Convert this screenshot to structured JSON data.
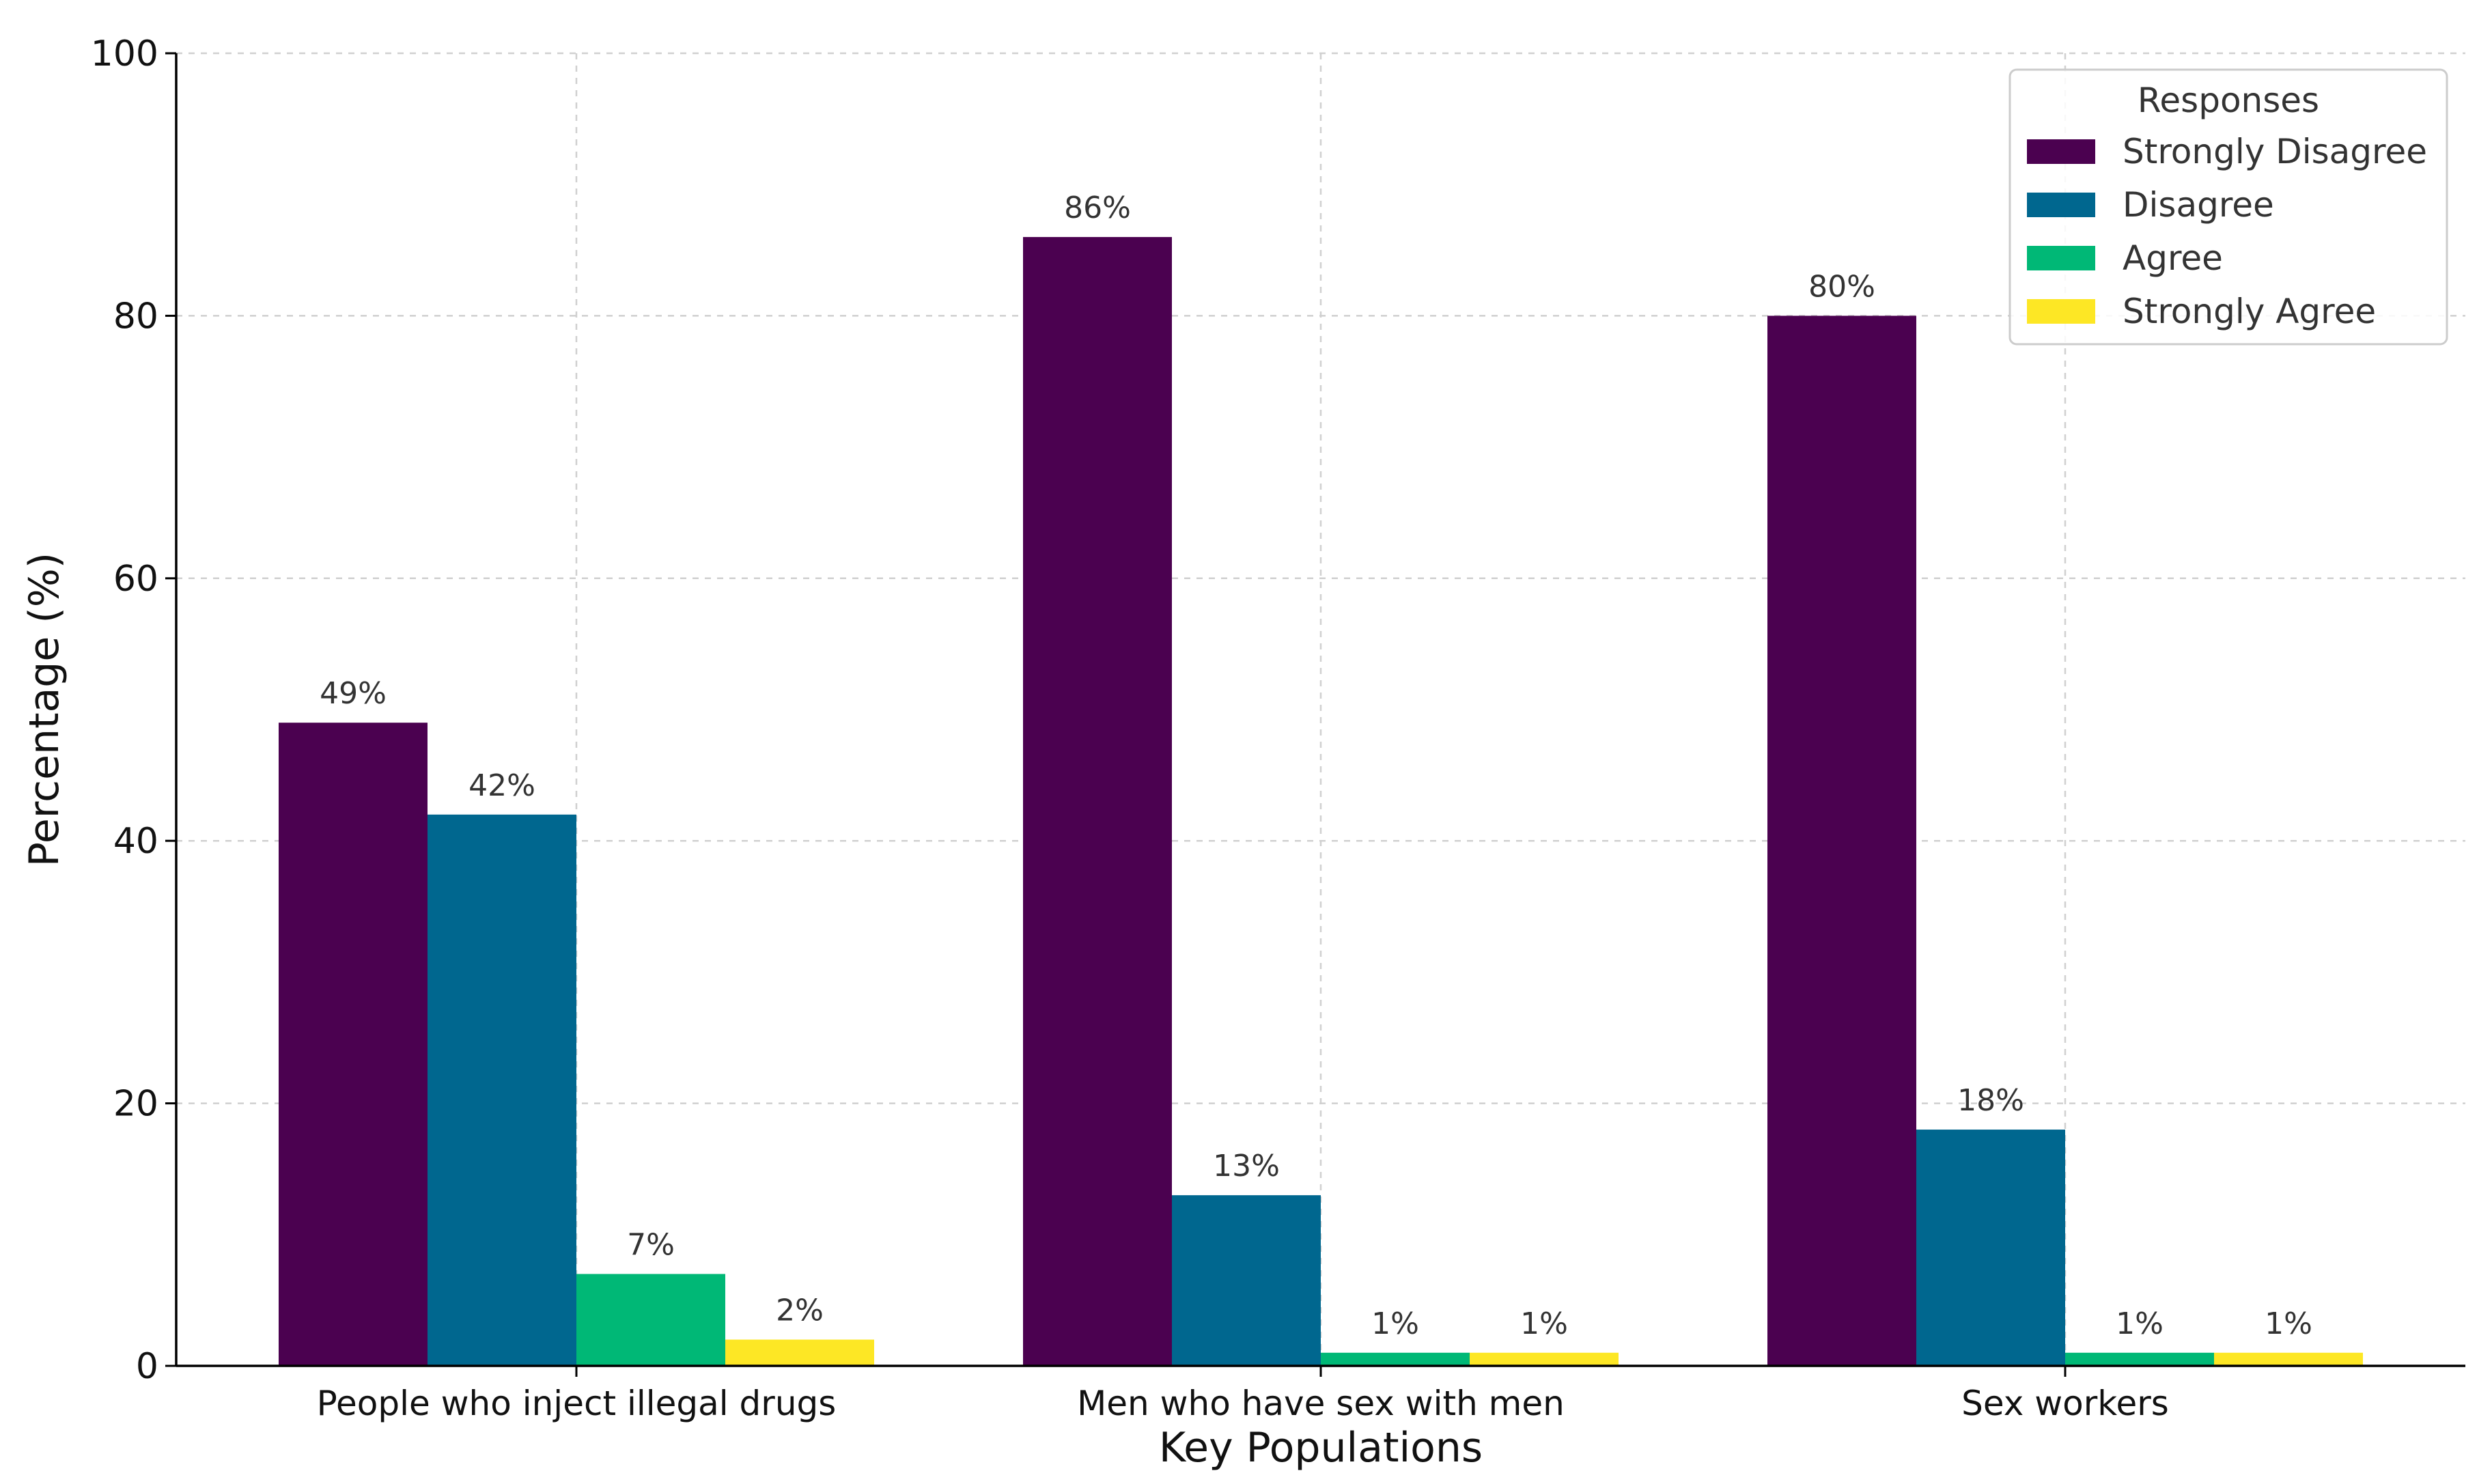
{
  "chart_data": {
    "type": "bar",
    "title": "",
    "xlabel": "Key Populations",
    "ylabel": "Percentage (%)",
    "ylim": [
      0,
      100
    ],
    "yticks": [
      0,
      20,
      40,
      60,
      80,
      100
    ],
    "grid": true,
    "categories": [
      "People who inject illegal drugs",
      "Men who have sex with men",
      "Sex workers"
    ],
    "series": [
      {
        "name": "Strongly Disagree",
        "color": "#4b0150",
        "values": [
          49,
          86,
          80
        ],
        "labels": [
          "49%",
          "86%",
          "80%"
        ]
      },
      {
        "name": "Disagree",
        "color": "#00678f",
        "values": [
          42,
          13,
          18
        ],
        "labels": [
          "42%",
          "13%",
          "18%"
        ]
      },
      {
        "name": "Agree",
        "color": "#00b876",
        "values": [
          7,
          1,
          1
        ],
        "labels": [
          "7%",
          "1%",
          "1%"
        ]
      },
      {
        "name": "Strongly Agree",
        "color": "#fde725",
        "values": [
          2,
          1,
          1
        ],
        "labels": [
          "2%",
          "1%",
          "1%"
        ]
      }
    ],
    "legend": {
      "title": "Responses",
      "position": "top-right"
    }
  }
}
